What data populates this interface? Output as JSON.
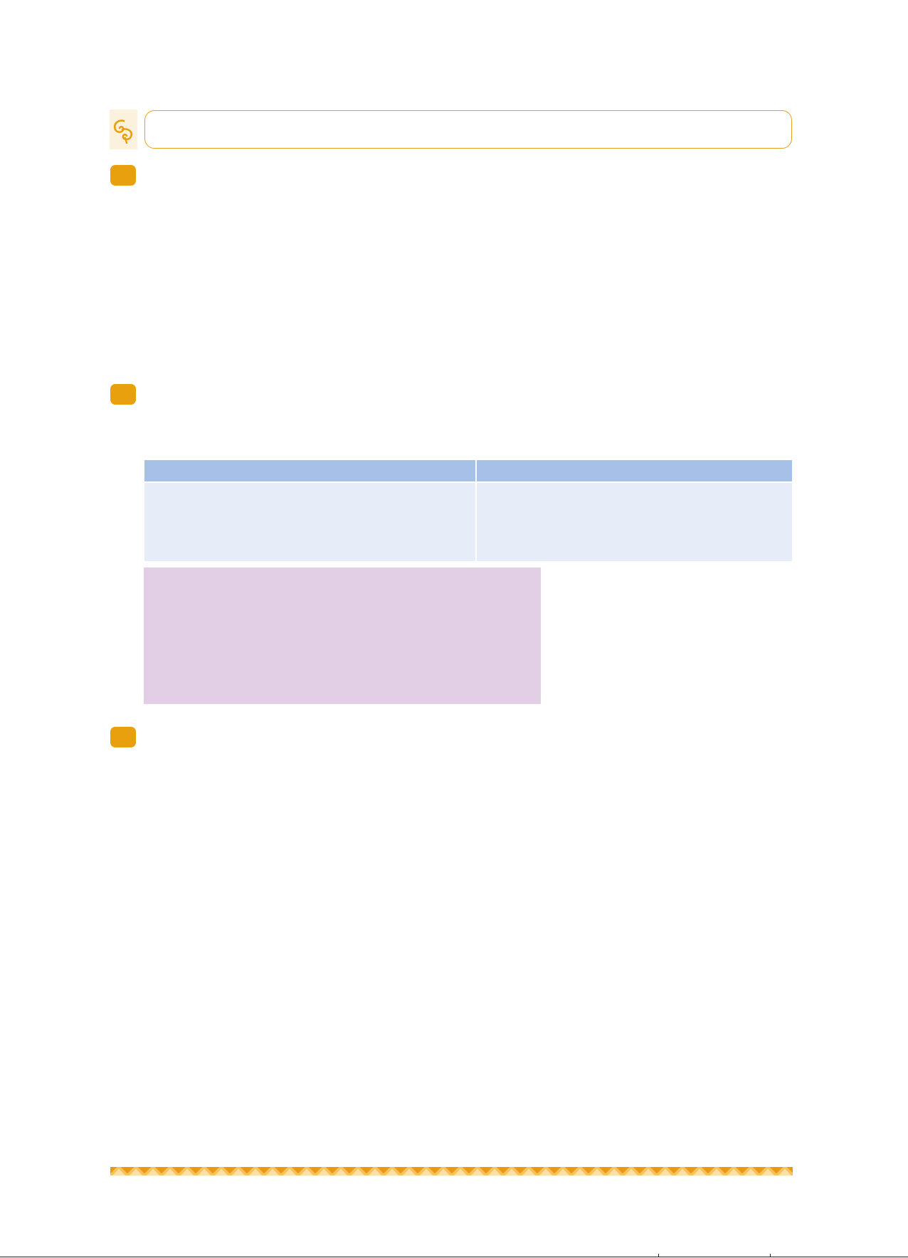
{
  "header": {
    "title": ""
  },
  "sections": [
    {
      "number": "",
      "text": ""
    },
    {
      "number": "",
      "text": ""
    },
    {
      "number": "",
      "text": ""
    }
  ],
  "table": {
    "headers": [
      "",
      ""
    ],
    "rows": [
      [
        "",
        ""
      ]
    ]
  },
  "note": {
    "text": ""
  },
  "colors": {
    "accent": "#e8a00e",
    "title_border": "#e8a020",
    "table_header": "#a7c0e8",
    "table_cell": "#e7edf8",
    "note_background": "#e2cfe6",
    "logo_background": "#fcf1dc"
  },
  "icons": {
    "logo": "swirl-logo-icon"
  }
}
